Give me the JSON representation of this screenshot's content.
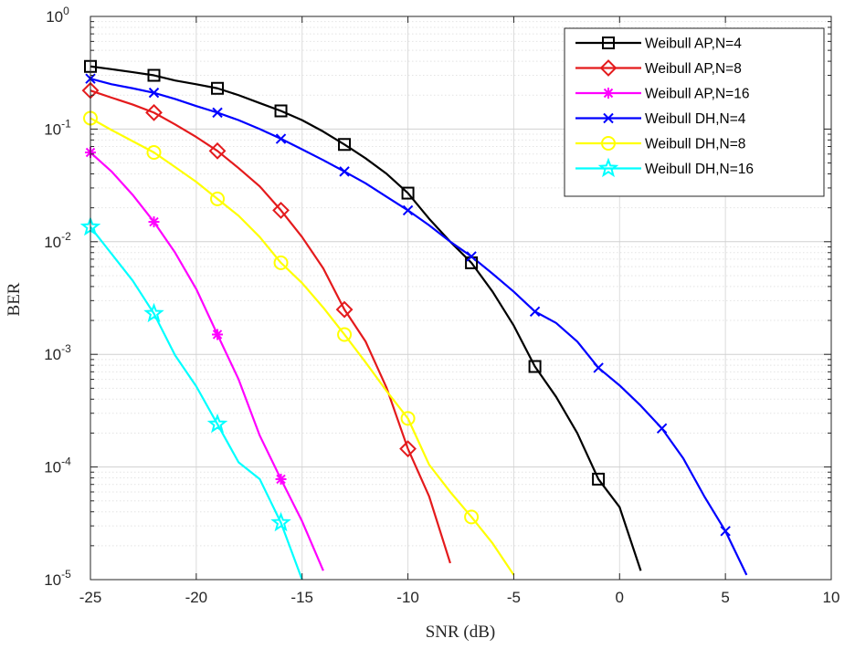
{
  "chart_data": {
    "type": "line",
    "title": "",
    "xlabel": "SNR (dB)",
    "ylabel": "BER",
    "xlim": [
      -25,
      10
    ],
    "ylim": [
      1e-05,
      1
    ],
    "yscale": "log",
    "grid": true,
    "legend_position": "top-right",
    "xticks": [
      -25,
      -20,
      -15,
      -10,
      -5,
      0,
      5,
      10
    ],
    "xtick_labels": [
      "-25",
      "-20",
      "-15",
      "-10",
      "-5",
      "0",
      "5",
      "10"
    ],
    "yticks": [
      {
        "value": 1e-05,
        "base": "10",
        "exp": "-5"
      },
      {
        "value": 0.0001,
        "base": "10",
        "exp": "-4"
      },
      {
        "value": 0.001,
        "base": "10",
        "exp": "-3"
      },
      {
        "value": 0.01,
        "base": "10",
        "exp": "-2"
      },
      {
        "value": 0.1,
        "base": "10",
        "exp": "-1"
      },
      {
        "value": 1,
        "base": "10",
        "exp": "0"
      }
    ],
    "series": [
      {
        "name": "Weibull AP,N=4",
        "color": "#000000",
        "marker": "square",
        "x": [
          -25,
          -24,
          -23,
          -22,
          -21,
          -20,
          -19,
          -18,
          -17,
          -16,
          -15,
          -14,
          -13,
          -12,
          -11,
          -10,
          -9,
          -8,
          -7,
          -6,
          -5,
          -4,
          -3,
          -2,
          -1,
          0,
          1
        ],
        "y": [
          0.36,
          0.34,
          0.32,
          0.3,
          0.27,
          0.25,
          0.23,
          0.2,
          0.17,
          0.145,
          0.12,
          0.095,
          0.073,
          0.055,
          0.04,
          0.027,
          0.016,
          0.01,
          0.0065,
          0.0036,
          0.0018,
          0.00078,
          0.00042,
          0.0002,
          7.8e-05,
          4.4e-05,
          1.2e-05
        ],
        "marker_x": [
          -25,
          -22,
          -19,
          -16,
          -13,
          -10,
          -7,
          -4,
          -1
        ]
      },
      {
        "name": "Weibull AP,N=8",
        "color": "#e41a1c",
        "marker": "diamond",
        "x": [
          -25,
          -24,
          -23,
          -22,
          -21,
          -20,
          -19,
          -18,
          -17,
          -16,
          -15,
          -14,
          -13,
          -12,
          -11,
          -10,
          -9,
          -8
        ],
        "y": [
          0.22,
          0.19,
          0.165,
          0.14,
          0.11,
          0.085,
          0.064,
          0.045,
          0.031,
          0.019,
          0.011,
          0.0058,
          0.0025,
          0.0013,
          0.0005,
          0.000145,
          5.5e-05,
          1.4e-05
        ],
        "marker_x": [
          -25,
          -22,
          -19,
          -16,
          -13,
          -10
        ]
      },
      {
        "name": "Weibull AP,N=16",
        "color": "#ff00ff",
        "marker": "asterisk",
        "x": [
          -25,
          -24,
          -23,
          -22,
          -21,
          -20,
          -19,
          -18,
          -17,
          -16,
          -15,
          -14
        ],
        "y": [
          0.062,
          0.042,
          0.026,
          0.015,
          0.008,
          0.0038,
          0.0015,
          0.0006,
          0.00019,
          7.8e-05,
          3.3e-05,
          1.2e-05
        ],
        "marker_x": [
          -25,
          -22,
          -19,
          -16
        ]
      },
      {
        "name": "Weibull DH,N=4",
        "color": "#0000ff",
        "marker": "x",
        "x": [
          -25,
          -24,
          -23,
          -22,
          -21,
          -20,
          -19,
          -18,
          -17,
          -16,
          -15,
          -14,
          -13,
          -12,
          -11,
          -10,
          -9,
          -8,
          -7,
          -6,
          -5,
          -4,
          -3,
          -2,
          -1,
          0,
          1,
          2,
          3,
          4,
          5,
          6
        ],
        "y": [
          0.28,
          0.25,
          0.23,
          0.21,
          0.185,
          0.16,
          0.14,
          0.12,
          0.1,
          0.082,
          0.066,
          0.053,
          0.042,
          0.033,
          0.025,
          0.019,
          0.014,
          0.01,
          0.0074,
          0.0052,
          0.0036,
          0.0024,
          0.0019,
          0.0013,
          0.00076,
          0.00053,
          0.00035,
          0.00022,
          0.00012,
          5.5e-05,
          2.7e-05,
          1.1e-05
        ],
        "marker_x": [
          -25,
          -22,
          -19,
          -16,
          -13,
          -10,
          -7,
          -4,
          -1,
          2,
          5
        ]
      },
      {
        "name": "Weibull DH,N=8",
        "color": "#ffff00",
        "marker": "circle",
        "x": [
          -25,
          -24,
          -23,
          -22,
          -21,
          -20,
          -19,
          -18,
          -17,
          -16,
          -15,
          -14,
          -13,
          -12,
          -11,
          -10,
          -9,
          -8,
          -7,
          -6,
          -5
        ],
        "y": [
          0.125,
          0.098,
          0.078,
          0.062,
          0.046,
          0.034,
          0.024,
          0.017,
          0.011,
          0.0065,
          0.0043,
          0.0026,
          0.0015,
          0.00085,
          0.00047,
          0.00027,
          0.000105,
          6e-05,
          3.6e-05,
          2.1e-05,
          1.1e-05
        ],
        "marker_x": [
          -25,
          -22,
          -19,
          -16,
          -13,
          -10,
          -7
        ]
      },
      {
        "name": "Weibull DH,N=16",
        "color": "#00ffff",
        "marker": "star",
        "x": [
          -25,
          -24,
          -23,
          -22,
          -21,
          -20,
          -19,
          -18,
          -17,
          -16,
          -15
        ],
        "y": [
          0.0135,
          0.0078,
          0.0045,
          0.0023,
          0.00098,
          0.00052,
          0.00024,
          0.00011,
          7.8e-05,
          3.2e-05,
          1e-05
        ],
        "marker_x": [
          -25,
          -22,
          -19,
          -16
        ]
      }
    ]
  }
}
